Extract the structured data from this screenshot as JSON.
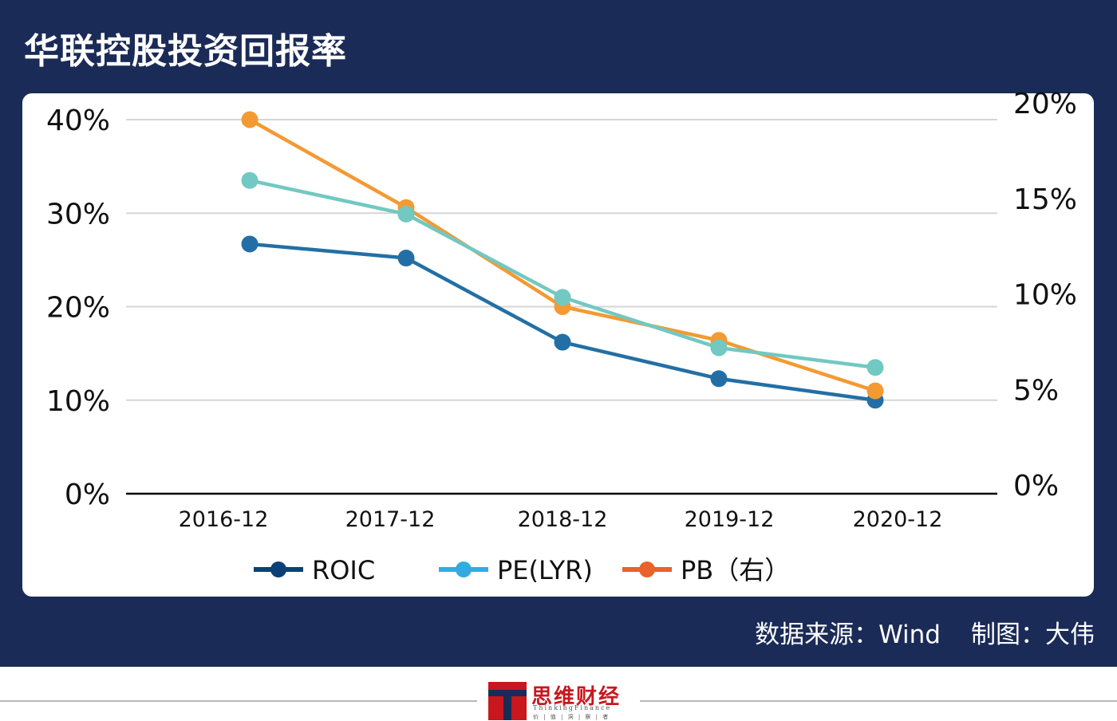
{
  "title": "华联控股投资回报率",
  "source_label": "数据来源：Wind",
  "author_label": "制图：大伟",
  "brand": {
    "name": "思维财经",
    "sub": "ThinkingFinance",
    "tagline": "价 | 值 | 洞 | 察 | 者",
    "colors": {
      "red": "#c8171d",
      "navy": "#1b2b57"
    }
  },
  "chart_data": {
    "type": "line",
    "title": "华联控股投资回报率",
    "categories": [
      "2016-12",
      "2017-12",
      "2018-12",
      "2019-12",
      "2020-12"
    ],
    "left_axis": {
      "ticks": [
        "0%",
        "10%",
        "20%",
        "30%",
        "40%"
      ],
      "ylim": [
        0,
        40
      ]
    },
    "right_axis": {
      "ticks": [
        "0%",
        "5%",
        "10%",
        "15%",
        "20%"
      ],
      "ylim": [
        0,
        20
      ]
    },
    "grid": true,
    "legend_position": "bottom",
    "series": [
      {
        "name": "ROIC",
        "axis": "left",
        "values": [
          26.7,
          25.2,
          16.2,
          12.3,
          10.0
        ],
        "color": "#236fa5",
        "legend_color": "#0b3f78"
      },
      {
        "name": "PE(LYR)",
        "axis": "left",
        "values": [
          33.5,
          29.9,
          21.0,
          15.6,
          13.5
        ],
        "color": "#72c8c2",
        "legend_color": "#2eaee0"
      },
      {
        "name": "PB（右）",
        "axis": "right",
        "values": [
          20.0,
          15.3,
          10.0,
          8.2,
          5.5
        ],
        "color": "#f39a32",
        "legend_color": "#e9622a"
      }
    ]
  }
}
